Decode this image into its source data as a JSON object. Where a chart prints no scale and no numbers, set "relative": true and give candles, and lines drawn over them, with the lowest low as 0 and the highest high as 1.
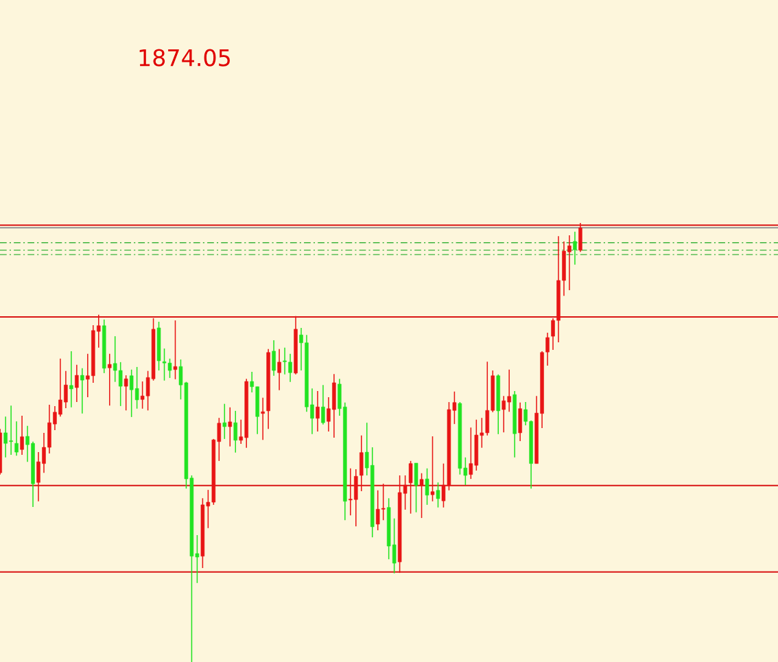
{
  "chart_data": {
    "type": "candlestick",
    "title": "1874.05",
    "relative": true,
    "categories": [
      null,
      null,
      null,
      null,
      null,
      null,
      null,
      null,
      null,
      null,
      null,
      null,
      null,
      null,
      null,
      null,
      null,
      null,
      null,
      null,
      null,
      null,
      null,
      null,
      null,
      null,
      null,
      null,
      null,
      null,
      null,
      null,
      null,
      null,
      null,
      null,
      null,
      null,
      null,
      null,
      null,
      null,
      null,
      null,
      null,
      null,
      null,
      null,
      null,
      null,
      null,
      null,
      null,
      null,
      null,
      null,
      null,
      null,
      null,
      null,
      null,
      null,
      null,
      null,
      null,
      null,
      null,
      null,
      null,
      null,
      null,
      null,
      null,
      null,
      null,
      null,
      null,
      null,
      null,
      null,
      null,
      null,
      null,
      null,
      null,
      null,
      null,
      null,
      null,
      null,
      null,
      null,
      null,
      null,
      null,
      null,
      null,
      null,
      null,
      null,
      null,
      null,
      null,
      null,
      null,
      null,
      null
    ],
    "ohlc": [
      [
        0.431,
        0.531,
        0.427,
        0.522
      ],
      [
        0.522,
        0.559,
        0.466,
        0.498
      ],
      [
        0.503,
        0.584,
        0.472,
        0.502
      ],
      [
        0.498,
        0.548,
        0.47,
        0.478
      ],
      [
        0.484,
        0.561,
        0.472,
        0.513
      ],
      [
        0.514,
        0.538,
        0.456,
        0.495
      ],
      [
        0.498,
        0.502,
        0.353,
        0.406
      ],
      [
        0.409,
        0.478,
        0.366,
        0.456
      ],
      [
        0.452,
        0.522,
        0.431,
        0.489
      ],
      [
        0.489,
        0.586,
        0.475,
        0.545
      ],
      [
        0.542,
        0.583,
        0.528,
        0.569
      ],
      [
        0.564,
        0.691,
        0.559,
        0.597
      ],
      [
        0.592,
        0.663,
        0.578,
        0.631
      ],
      [
        0.63,
        0.708,
        0.58,
        0.622
      ],
      [
        0.625,
        0.677,
        0.592,
        0.653
      ],
      [
        0.653,
        0.669,
        0.566,
        0.642
      ],
      [
        0.644,
        0.702,
        0.603,
        0.652
      ],
      [
        0.652,
        0.767,
        0.636,
        0.755
      ],
      [
        0.753,
        0.791,
        0.716,
        0.766
      ],
      [
        0.766,
        0.78,
        0.658,
        0.669
      ],
      [
        0.67,
        0.702,
        0.584,
        0.678
      ],
      [
        0.68,
        0.742,
        0.638,
        0.664
      ],
      [
        0.664,
        0.683,
        0.583,
        0.628
      ],
      [
        0.628,
        0.653,
        0.573,
        0.645
      ],
      [
        0.652,
        0.666,
        0.558,
        0.62
      ],
      [
        0.623,
        0.672,
        0.577,
        0.597
      ],
      [
        0.598,
        0.639,
        0.577,
        0.606
      ],
      [
        0.606,
        0.663,
        0.573,
        0.648
      ],
      [
        0.645,
        0.783,
        0.641,
        0.758
      ],
      [
        0.761,
        0.775,
        0.664,
        0.686
      ],
      [
        0.684,
        0.714,
        0.641,
        0.681
      ],
      [
        0.681,
        0.691,
        0.647,
        0.664
      ],
      [
        0.666,
        0.778,
        0.644,
        0.673
      ],
      [
        0.673,
        0.689,
        0.598,
        0.631
      ],
      [
        0.636,
        0.638,
        0.395,
        0.417
      ],
      [
        0.419,
        0.425,
        0.0,
        0.241
      ],
      [
        0.247,
        0.289,
        0.18,
        0.239
      ],
      [
        0.241,
        0.373,
        0.214,
        0.358
      ],
      [
        0.355,
        0.392,
        0.305,
        0.364
      ],
      [
        0.364,
        0.508,
        0.358,
        0.506
      ],
      [
        0.502,
        0.556,
        0.458,
        0.544
      ],
      [
        0.545,
        0.588,
        0.508,
        0.536
      ],
      [
        0.536,
        0.58,
        0.491,
        0.547
      ],
      [
        0.545,
        0.572,
        0.477,
        0.505
      ],
      [
        0.505,
        0.552,
        0.497,
        0.513
      ],
      [
        0.511,
        0.645,
        0.488,
        0.639
      ],
      [
        0.639,
        0.661,
        0.614,
        0.627
      ],
      [
        0.627,
        0.627,
        0.519,
        0.559
      ],
      [
        0.566,
        0.602,
        0.506,
        0.57
      ],
      [
        0.572,
        0.713,
        0.531,
        0.705
      ],
      [
        0.708,
        0.733,
        0.652,
        0.664
      ],
      [
        0.659,
        0.713,
        0.619,
        0.683
      ],
      [
        0.686,
        0.716,
        0.655,
        0.684
      ],
      [
        0.683,
        0.702,
        0.638,
        0.659
      ],
      [
        0.658,
        0.788,
        0.655,
        0.758
      ],
      [
        0.745,
        0.761,
        0.664,
        0.727
      ],
      [
        0.727,
        0.745,
        0.57,
        0.581
      ],
      [
        0.586,
        0.623,
        0.519,
        0.555
      ],
      [
        0.555,
        0.617,
        0.525,
        0.581
      ],
      [
        0.581,
        0.631,
        0.541,
        0.545
      ],
      [
        0.548,
        0.603,
        0.525,
        0.577
      ],
      [
        0.575,
        0.656,
        0.511,
        0.636
      ],
      [
        0.633,
        0.645,
        0.561,
        0.577
      ],
      [
        0.581,
        0.591,
        0.323,
        0.366
      ],
      [
        0.369,
        0.441,
        0.334,
        0.37
      ],
      [
        0.37,
        0.439,
        0.309,
        0.423
      ],
      [
        0.425,
        0.516,
        0.389,
        0.477
      ],
      [
        0.478,
        0.545,
        0.425,
        0.442
      ],
      [
        0.448,
        0.489,
        0.284,
        0.308
      ],
      [
        0.314,
        0.391,
        0.3,
        0.348
      ],
      [
        0.348,
        0.406,
        0.323,
        0.35
      ],
      [
        0.352,
        0.373,
        0.234,
        0.264
      ],
      [
        0.267,
        0.327,
        0.202,
        0.225
      ],
      [
        0.228,
        0.425,
        0.203,
        0.386
      ],
      [
        0.384,
        0.425,
        0.347,
        0.403
      ],
      [
        0.408,
        0.458,
        0.338,
        0.452
      ],
      [
        0.453,
        0.453,
        0.341,
        0.402
      ],
      [
        0.402,
        0.43,
        0.328,
        0.416
      ],
      [
        0.417,
        0.441,
        0.358,
        0.38
      ],
      [
        0.381,
        0.514,
        0.366,
        0.388
      ],
      [
        0.391,
        0.409,
        0.352,
        0.372
      ],
      [
        0.367,
        0.452,
        0.352,
        0.403
      ],
      [
        0.402,
        0.592,
        0.391,
        0.575
      ],
      [
        0.573,
        0.616,
        0.542,
        0.591
      ],
      [
        0.589,
        0.592,
        0.427,
        0.441
      ],
      [
        0.442,
        0.466,
        0.403,
        0.425
      ],
      [
        0.427,
        0.534,
        0.417,
        0.452
      ],
      [
        0.448,
        0.552,
        0.436,
        0.517
      ],
      [
        0.516,
        0.556,
        0.488,
        0.522
      ],
      [
        0.522,
        0.684,
        0.516,
        0.573
      ],
      [
        0.573,
        0.664,
        0.569,
        0.652
      ],
      [
        0.652,
        0.655,
        0.519,
        0.572
      ],
      [
        0.575,
        0.606,
        0.523,
        0.595
      ],
      [
        0.592,
        0.666,
        0.57,
        0.605
      ],
      [
        0.609,
        0.617,
        0.466,
        0.52
      ],
      [
        0.522,
        0.591,
        0.503,
        0.577
      ],
      [
        0.575,
        0.592,
        0.539,
        0.548
      ],
      [
        0.548,
        0.55,
        0.395,
        0.452
      ],
      [
        0.452,
        0.606,
        0.452,
        0.567
      ],
      [
        0.566,
        0.708,
        0.533,
        0.705
      ],
      [
        0.706,
        0.75,
        0.675,
        0.739
      ],
      [
        0.742,
        0.783,
        0.711,
        0.778
      ],
      [
        0.778,
        0.97,
        0.728,
        0.869
      ],
      [
        0.869,
        0.958,
        0.834,
        0.936
      ],
      [
        0.934,
        0.972,
        0.847,
        0.948
      ],
      [
        0.958,
        0.98,
        0.905,
        0.939
      ],
      [
        0.938,
        1.0,
        0.934,
        0.989
      ]
    ],
    "colors": [
      "#e81515",
      "#22e322",
      "#22e322",
      "#22e322",
      "#e81515",
      "#22e322",
      "#22e322",
      "#e81515",
      "#e81515",
      "#e81515",
      "#e81515",
      "#e81515",
      "#e81515",
      "#22e322",
      "#e81515",
      "#22e322",
      "#e81515",
      "#e81515",
      "#e81515",
      "#22e322",
      "#e81515",
      "#22e322",
      "#22e322",
      "#e81515",
      "#22e322",
      "#22e322",
      "#e81515",
      "#e81515",
      "#e81515",
      "#22e322",
      "#22e322",
      "#22e322",
      "#e81515",
      "#22e322",
      "#22e322",
      "#22e322",
      "#22e322",
      "#e81515",
      "#e81515",
      "#e81515",
      "#e81515",
      "#22e322",
      "#e81515",
      "#22e322",
      "#e81515",
      "#e81515",
      "#22e322",
      "#22e322",
      "#e81515",
      "#e81515",
      "#22e322",
      "#e81515",
      "#22e322",
      "#22e322",
      "#e81515",
      "#22e322",
      "#22e322",
      "#22e322",
      "#e81515",
      "#22e322",
      "#e81515",
      "#e81515",
      "#22e322",
      "#22e322",
      "#e81515",
      "#e81515",
      "#e81515",
      "#22e322",
      "#22e322",
      "#e81515",
      "#e81515",
      "#22e322",
      "#22e322",
      "#e81515",
      "#e81515",
      "#e81515",
      "#22e322",
      "#e81515",
      "#22e322",
      "#e81515",
      "#22e322",
      "#e81515",
      "#e81515",
      "#e81515",
      "#22e322",
      "#22e322",
      "#e81515",
      "#e81515",
      "#e81515",
      "#e81515",
      "#e81515",
      "#22e322",
      "#e81515",
      "#e81515",
      "#22e322",
      "#e81515",
      "#22e322",
      "#22e322",
      "#e81515",
      "#e81515",
      "#e81515",
      "#e81515",
      "#e81515",
      "#e81515",
      "#e81515",
      "#22e322",
      "#e81515"
    ],
    "ref_lines": [
      {
        "axis": "y",
        "value": 0.995,
        "color": "#d91414",
        "line_style": "solid"
      },
      {
        "axis": "y",
        "value": 0.989,
        "color": "#9a9a9a",
        "line_style": "solid"
      },
      {
        "axis": "y",
        "value": 0.955,
        "color": "#3cb43c",
        "line_style": "dashed"
      },
      {
        "axis": "y",
        "value": 0.938,
        "color": "#3cb43c",
        "line_style": "dashed"
      },
      {
        "axis": "y",
        "value": 0.928,
        "color": "#3cb43c",
        "line_style": "dashed"
      },
      {
        "axis": "y",
        "value": 0.786,
        "color": "#d91414",
        "line_style": "solid"
      },
      {
        "axis": "y",
        "value": 0.402,
        "color": "#d91414",
        "line_style": "solid"
      },
      {
        "axis": "y",
        "value": 0.205,
        "color": "#d91414",
        "line_style": "solid"
      }
    ]
  }
}
